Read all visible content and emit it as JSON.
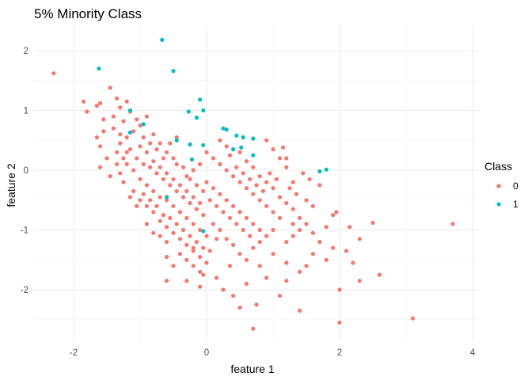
{
  "chart_data": {
    "type": "scatter",
    "title": "5% Minority Class",
    "xlabel": "feature 1",
    "ylabel": "feature 2",
    "xlim": [
      -2.5,
      4.0
    ],
    "ylim": [
      -2.75,
      2.3
    ],
    "x_ticks": [
      -2,
      0,
      2,
      4
    ],
    "y_ticks": [
      -2,
      -1,
      0,
      1,
      2
    ],
    "grid": true,
    "legend": {
      "title": "Class",
      "position": "right",
      "entries": [
        {
          "label": "0",
          "color": "#F8766D"
        },
        {
          "label": "1",
          "color": "#00BFC4"
        }
      ]
    },
    "series": [
      {
        "class": "0",
        "color": "#F8766D",
        "points": [
          [
            -2.3,
            1.62
          ],
          [
            -1.85,
            1.15
          ],
          [
            -1.8,
            0.98
          ],
          [
            -1.65,
            1.08
          ],
          [
            -1.6,
            1.12
          ],
          [
            -1.55,
            0.85
          ],
          [
            -1.45,
            1.38
          ],
          [
            -1.35,
            1.2
          ],
          [
            -1.3,
            1.05
          ],
          [
            -1.2,
            1.15
          ],
          [
            -1.15,
            0.98
          ],
          [
            -1.25,
            0.82
          ],
          [
            -1.4,
            0.7
          ],
          [
            -1.6,
            0.4
          ],
          [
            -1.5,
            0.2
          ],
          [
            -1.35,
            0.3
          ],
          [
            -1.2,
            0.55
          ],
          [
            -1.1,
            0.65
          ],
          [
            -1.0,
            0.75
          ],
          [
            -0.9,
            0.9
          ],
          [
            -0.8,
            0.6
          ],
          [
            -0.7,
            0.45
          ],
          [
            -0.6,
            0.3
          ],
          [
            -0.5,
            0.2
          ],
          [
            -1.55,
            0.65
          ],
          [
            -1.65,
            0.55
          ],
          [
            -1.6,
            0.05
          ],
          [
            -1.45,
            -0.1
          ],
          [
            -1.3,
            -0.05
          ],
          [
            -1.2,
            0.1
          ],
          [
            -1.1,
            0.0
          ],
          [
            -1.0,
            -0.15
          ],
          [
            -0.9,
            -0.25
          ],
          [
            -0.8,
            -0.35
          ],
          [
            -0.7,
            -0.45
          ],
          [
            -0.6,
            -0.5
          ],
          [
            -0.5,
            -0.6
          ],
          [
            -0.4,
            -0.7
          ],
          [
            -0.3,
            -0.8
          ],
          [
            -0.2,
            -0.9
          ],
          [
            -0.1,
            -1.0
          ],
          [
            0.0,
            -1.1
          ],
          [
            -1.15,
            0.35
          ],
          [
            -1.05,
            0.2
          ],
          [
            -0.95,
            0.1
          ],
          [
            -0.85,
            0.05
          ],
          [
            -0.75,
            -0.05
          ],
          [
            -0.65,
            -0.15
          ],
          [
            -0.55,
            -0.25
          ],
          [
            -0.45,
            -0.35
          ],
          [
            -0.35,
            -0.45
          ],
          [
            -0.25,
            -0.55
          ],
          [
            -0.15,
            -0.65
          ],
          [
            -0.05,
            -0.75
          ],
          [
            -1.3,
            0.45
          ],
          [
            -1.2,
            0.3
          ],
          [
            -1.0,
            0.4
          ],
          [
            -0.9,
            0.3
          ],
          [
            -0.8,
            0.15
          ],
          [
            -0.7,
            0.05
          ],
          [
            -0.6,
            -0.05
          ],
          [
            -0.5,
            -0.15
          ],
          [
            -0.4,
            -0.25
          ],
          [
            -0.3,
            -0.35
          ],
          [
            -0.2,
            -0.45
          ],
          [
            -0.1,
            -0.55
          ],
          [
            -1.1,
            -0.35
          ],
          [
            -1.0,
            -0.5
          ],
          [
            -0.9,
            -0.6
          ],
          [
            -0.8,
            -0.7
          ],
          [
            -0.7,
            -0.85
          ],
          [
            -0.6,
            -0.95
          ],
          [
            -0.5,
            -1.05
          ],
          [
            -0.4,
            -1.15
          ],
          [
            -0.3,
            -1.25
          ],
          [
            -0.2,
            -1.35
          ],
          [
            -0.1,
            -1.45
          ],
          [
            0.0,
            -1.55
          ],
          [
            -0.9,
            -0.9
          ],
          [
            -0.8,
            -1.05
          ],
          [
            -0.7,
            -1.1
          ],
          [
            -0.6,
            -1.2
          ],
          [
            -0.4,
            -1.4
          ],
          [
            -0.3,
            -1.5
          ],
          [
            -0.2,
            -1.6
          ],
          [
            -0.1,
            -1.7
          ],
          [
            -0.3,
            -1.85
          ],
          [
            -0.1,
            -1.95
          ],
          [
            -0.5,
            -1.6
          ],
          [
            -0.6,
            -1.45
          ],
          [
            -0.3,
            -0.1
          ],
          [
            -0.2,
            0.0
          ],
          [
            -0.1,
            0.1
          ],
          [
            0.0,
            -0.2
          ],
          [
            0.1,
            -0.3
          ],
          [
            0.2,
            -0.4
          ],
          [
            0.3,
            -0.5
          ],
          [
            0.4,
            -0.6
          ],
          [
            0.5,
            -0.7
          ],
          [
            0.6,
            -0.8
          ],
          [
            0.7,
            -0.9
          ],
          [
            0.8,
            -1.0
          ],
          [
            0.0,
            0.3
          ],
          [
            0.1,
            0.2
          ],
          [
            0.2,
            0.1
          ],
          [
            0.3,
            0.0
          ],
          [
            0.4,
            -0.1
          ],
          [
            0.5,
            -0.2
          ],
          [
            0.6,
            -0.3
          ],
          [
            0.7,
            -0.4
          ],
          [
            0.8,
            -0.5
          ],
          [
            0.9,
            -0.6
          ],
          [
            1.0,
            -0.7
          ],
          [
            1.1,
            -0.8
          ],
          [
            0.2,
            0.5
          ],
          [
            0.3,
            0.4
          ],
          [
            0.5,
            0.3
          ],
          [
            0.6,
            0.15
          ],
          [
            0.7,
            0.05
          ],
          [
            0.8,
            -0.1
          ],
          [
            0.9,
            -0.2
          ],
          [
            1.0,
            -0.3
          ],
          [
            1.1,
            -0.45
          ],
          [
            1.2,
            -0.55
          ],
          [
            1.3,
            -0.65
          ],
          [
            1.4,
            -0.8
          ],
          [
            0.1,
            -0.9
          ],
          [
            0.2,
            -1.0
          ],
          [
            0.3,
            -1.15
          ],
          [
            0.4,
            -1.25
          ],
          [
            0.5,
            -1.4
          ],
          [
            0.6,
            -1.5
          ],
          [
            0.7,
            -1.3
          ],
          [
            0.8,
            -1.2
          ],
          [
            0.9,
            -1.1
          ],
          [
            1.0,
            -1.0
          ],
          [
            1.2,
            -1.2
          ],
          [
            1.3,
            -1.1
          ],
          [
            1.4,
            -1.0
          ],
          [
            1.5,
            -0.9
          ],
          [
            1.6,
            -1.05
          ],
          [
            1.7,
            -1.2
          ],
          [
            1.8,
            -0.95
          ],
          [
            1.9,
            -0.75
          ],
          [
            0.9,
            0.5
          ],
          [
            1.0,
            0.35
          ],
          [
            1.1,
            0.2
          ],
          [
            1.2,
            0.05
          ],
          [
            1.15,
            0.38
          ],
          [
            1.2,
            0.2
          ],
          [
            0.95,
            -0.05
          ],
          [
            1.05,
            -0.15
          ],
          [
            1.25,
            -0.3
          ],
          [
            1.35,
            -0.4
          ],
          [
            1.5,
            -0.5
          ],
          [
            1.6,
            -0.6
          ],
          [
            1.0,
            -1.4
          ],
          [
            1.2,
            -1.55
          ],
          [
            1.4,
            -1.7
          ],
          [
            1.5,
            -1.6
          ],
          [
            1.2,
            -1.85
          ],
          [
            0.9,
            -1.8
          ],
          [
            0.6,
            -1.9
          ],
          [
            0.4,
            -2.1
          ],
          [
            0.5,
            -2.3
          ],
          [
            0.75,
            -2.25
          ],
          [
            0.7,
            -2.65
          ],
          [
            1.1,
            -2.1
          ],
          [
            1.4,
            -2.35
          ],
          [
            2.0,
            -2.0
          ],
          [
            2.0,
            -2.55
          ],
          [
            2.3,
            -1.85
          ],
          [
            2.2,
            -1.55
          ],
          [
            2.1,
            -1.35
          ],
          [
            2.3,
            -1.15
          ],
          [
            2.5,
            -0.88
          ],
          [
            2.15,
            -0.95
          ],
          [
            1.95,
            -0.7
          ],
          [
            2.6,
            -1.75
          ],
          [
            3.1,
            -2.48
          ],
          [
            3.7,
            -0.9
          ],
          [
            0.15,
            -1.8
          ],
          [
            0.25,
            -2.0
          ],
          [
            -0.05,
            -1.75
          ],
          [
            -0.6,
            -1.85
          ],
          [
            0.05,
            -1.35
          ],
          [
            -1.25,
            -0.2
          ],
          [
            -1.15,
            -0.45
          ],
          [
            -1.05,
            -0.6
          ],
          [
            -0.95,
            -0.4
          ],
          [
            -0.85,
            -0.5
          ],
          [
            -0.75,
            -0.6
          ],
          [
            -0.65,
            -0.75
          ],
          [
            -0.55,
            -0.8
          ],
          [
            -0.45,
            -0.9
          ],
          [
            -0.35,
            -1.0
          ],
          [
            -0.25,
            -1.1
          ],
          [
            -0.15,
            -1.2
          ],
          [
            -0.05,
            -1.3
          ],
          [
            -1.35,
            0.1
          ],
          [
            -1.25,
            0.2
          ],
          [
            -0.85,
            0.45
          ],
          [
            -0.75,
            0.35
          ],
          [
            -0.65,
            0.2
          ],
          [
            -0.45,
            0.1
          ],
          [
            -0.35,
            0.05
          ],
          [
            -0.25,
            -0.15
          ],
          [
            -0.15,
            -0.25
          ],
          [
            -0.05,
            -0.35
          ],
          [
            0.05,
            -0.5
          ],
          [
            0.15,
            -0.6
          ],
          [
            0.25,
            -0.7
          ],
          [
            0.35,
            -0.8
          ],
          [
            0.45,
            -0.9
          ],
          [
            0.55,
            -1.0
          ],
          [
            0.65,
            -1.1
          ],
          [
            -0.95,
            0.55
          ],
          [
            -1.05,
            0.85
          ],
          [
            -0.55,
            0.45
          ],
          [
            -0.45,
            0.55
          ],
          [
            -1.4,
            0.9
          ],
          [
            -1.3,
            0.6
          ],
          [
            0.35,
            0.25
          ],
          [
            0.45,
            0.05
          ],
          [
            0.55,
            -0.05
          ],
          [
            0.65,
            -0.15
          ],
          [
            0.75,
            -0.25
          ],
          [
            0.85,
            -0.35
          ],
          [
            1.7,
            -0.25
          ],
          [
            1.55,
            -0.15
          ],
          [
            1.45,
            -0.05
          ],
          [
            1.3,
            -0.2
          ],
          [
            1.3,
            -0.9
          ],
          [
            1.6,
            -1.4
          ],
          [
            1.8,
            -1.5
          ],
          [
            0.35,
            -1.6
          ],
          [
            -0.2,
            -1.3
          ],
          [
            0.15,
            -1.15
          ],
          [
            1.9,
            -1.3
          ],
          [
            0.8,
            -1.6
          ]
        ]
      },
      {
        "class": "1",
        "color": "#00BFC4",
        "points": [
          [
            -0.67,
            2.18
          ],
          [
            -1.62,
            1.7
          ],
          [
            -0.5,
            1.66
          ],
          [
            -1.15,
            1.0
          ],
          [
            -0.95,
            0.77
          ],
          [
            -1.15,
            0.63
          ],
          [
            -0.27,
            0.98
          ],
          [
            -0.15,
            0.88
          ],
          [
            -0.1,
            1.18
          ],
          [
            -0.05,
            1.0
          ],
          [
            -0.45,
            0.5
          ],
          [
            -0.25,
            0.43
          ],
          [
            -0.05,
            0.42
          ],
          [
            0.25,
            0.7
          ],
          [
            0.3,
            0.68
          ],
          [
            0.45,
            0.58
          ],
          [
            0.55,
            0.55
          ],
          [
            0.7,
            0.53
          ],
          [
            0.52,
            0.38
          ],
          [
            0.7,
            0.25
          ],
          [
            0.4,
            0.35
          ],
          [
            -0.22,
            0.18
          ],
          [
            1.7,
            -0.02
          ],
          [
            1.8,
            0.01
          ],
          [
            -0.6,
            -0.45
          ],
          [
            -0.05,
            -1.02
          ]
        ]
      }
    ]
  }
}
